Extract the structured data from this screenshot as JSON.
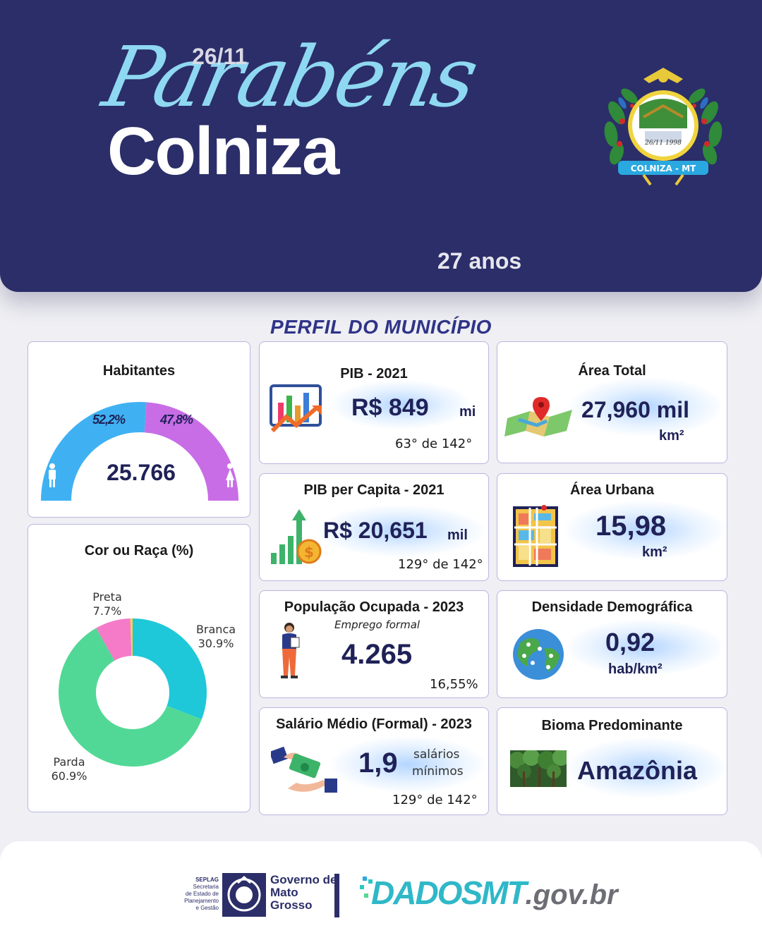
{
  "header": {
    "greeting": "Parabéns",
    "date": "26/11",
    "city": "Colniza",
    "years": "27 anos",
    "emblem": {
      "banner": "COLNIZA - MT",
      "date": "26/11 1998"
    }
  },
  "section_title": "PERFIL DO MUNICÍPIO",
  "cards": {
    "habitantes": {
      "title": "Habitantes",
      "male_pct": "52,2%",
      "female_pct": "47,8%",
      "total": "25.766",
      "male_value": 52.2,
      "female_value": 47.8,
      "colors": {
        "male": "#3fb1f2",
        "female": "#c86de6"
      }
    },
    "cor_raca": {
      "title": "Cor ou Raça (%)",
      "slices": [
        {
          "name": "Branca",
          "value": 30.9,
          "label": "30.9%",
          "color": "#1ec8d9"
        },
        {
          "name": "Parda",
          "value": 60.9,
          "label": "60.9%",
          "color": "#52d896"
        },
        {
          "name": "Preta",
          "value": 7.7,
          "label": "7.7%",
          "color": "#f57ac8"
        },
        {
          "name": "",
          "value": 0.5,
          "label": "",
          "color": "#f2d34a"
        }
      ]
    },
    "pib": {
      "title": "PIB - 2021",
      "value": "R$ 849",
      "unit": "mi",
      "rank": "63°  de 142°"
    },
    "pib_capita": {
      "title": "PIB per Capita - 2021",
      "value": "R$ 20,651",
      "unit": "mil",
      "rank": "129° de 142°"
    },
    "populacao": {
      "title": "População  Ocupada - 2023",
      "subtitle": "Emprego formal",
      "value": "4.265",
      "percent": "16,55%"
    },
    "salario": {
      "title": "Salário Médio (Formal) - 2023",
      "value": "1,9",
      "unit_line1": "salários",
      "unit_line2": "mínimos",
      "rank": "129° de 142°"
    },
    "area_total": {
      "title": "Área Total",
      "value": "27,960 mil",
      "unit": "km²"
    },
    "area_urbana": {
      "title": "Área Urbana",
      "value": "15,98",
      "unit": "km²"
    },
    "densidade": {
      "title": "Densidade Demográfica",
      "value": "0,92",
      "unit": "hab/km²"
    },
    "bioma": {
      "title": "Bioma Predominante",
      "value": "Amazônia"
    }
  },
  "footer": {
    "seplag": [
      "SEPLAG",
      "Secretaria",
      "de Estado de",
      "Planejamento",
      "e Gestão"
    ],
    "governo": [
      "Governo de",
      "Mato",
      "Grosso"
    ],
    "dados_main": "DADOSMT",
    "dados_suffix": ".gov.br"
  },
  "colors": {
    "navy": "#2b2e68",
    "accent_blue": "#2f3488",
    "light_blue": "#8fd8f2",
    "card_border": "#b9b6df"
  }
}
